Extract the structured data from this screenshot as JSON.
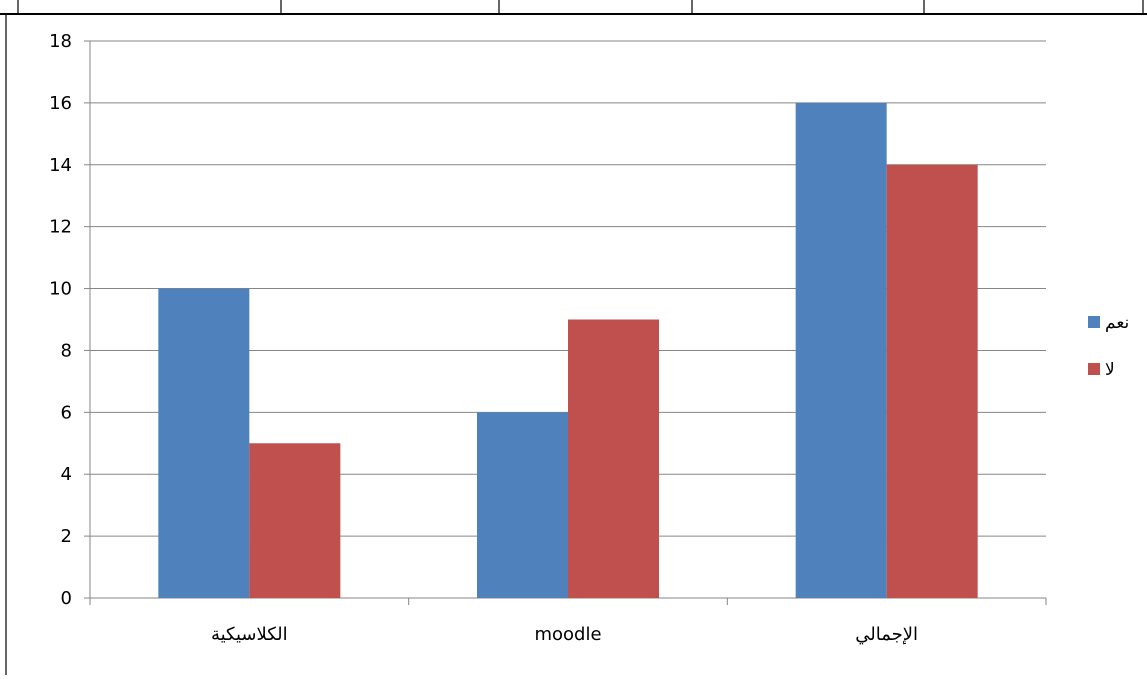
{
  "chart_data": {
    "type": "bar",
    "categories": [
      "الكلاسيكية",
      "moodle",
      "الإجمالي"
    ],
    "series": [
      {
        "name": "نعم",
        "values": [
          10,
          6,
          16
        ],
        "color": "#4F81BD"
      },
      {
        "name": "لا",
        "values": [
          5,
          9,
          14
        ],
        "color": "#C0504D"
      }
    ],
    "ylim": [
      0,
      18
    ],
    "yticks": [
      0,
      2,
      4,
      6,
      8,
      10,
      12,
      14,
      16,
      18
    ],
    "grid": true,
    "legend_position": "right",
    "title": "",
    "xlabel": "",
    "ylabel": ""
  }
}
